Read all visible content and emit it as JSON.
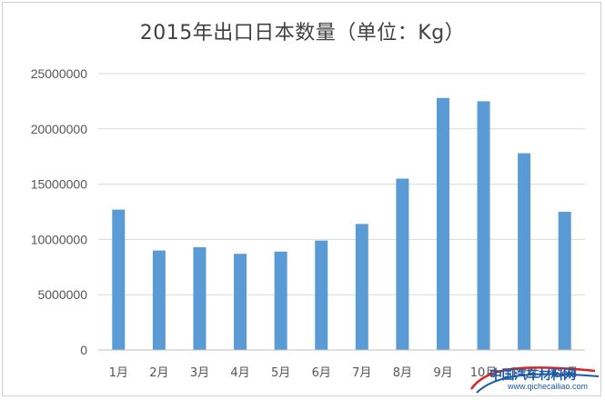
{
  "chart_data": {
    "type": "bar",
    "title": "2015年出口日本数量（单位：Kg）",
    "categories": [
      "1月",
      "2月",
      "3月",
      "4月",
      "5月",
      "6月",
      "7月",
      "8月",
      "9月",
      "10月",
      "11月",
      "12月"
    ],
    "values": [
      12700000,
      9000000,
      9300000,
      8700000,
      8900000,
      9900000,
      11400000,
      15500000,
      22800000,
      22500000,
      17800000,
      12500000
    ],
    "ylim": [
      0,
      25000000
    ],
    "yticks": [
      "0",
      "5000000",
      "10000000",
      "15000000",
      "20000000",
      "25000000"
    ],
    "grid": true,
    "bar_color": "#5b9bd5"
  },
  "watermark": {
    "name": "中国汽车材料网",
    "url": "www.qichecailiao.com"
  }
}
